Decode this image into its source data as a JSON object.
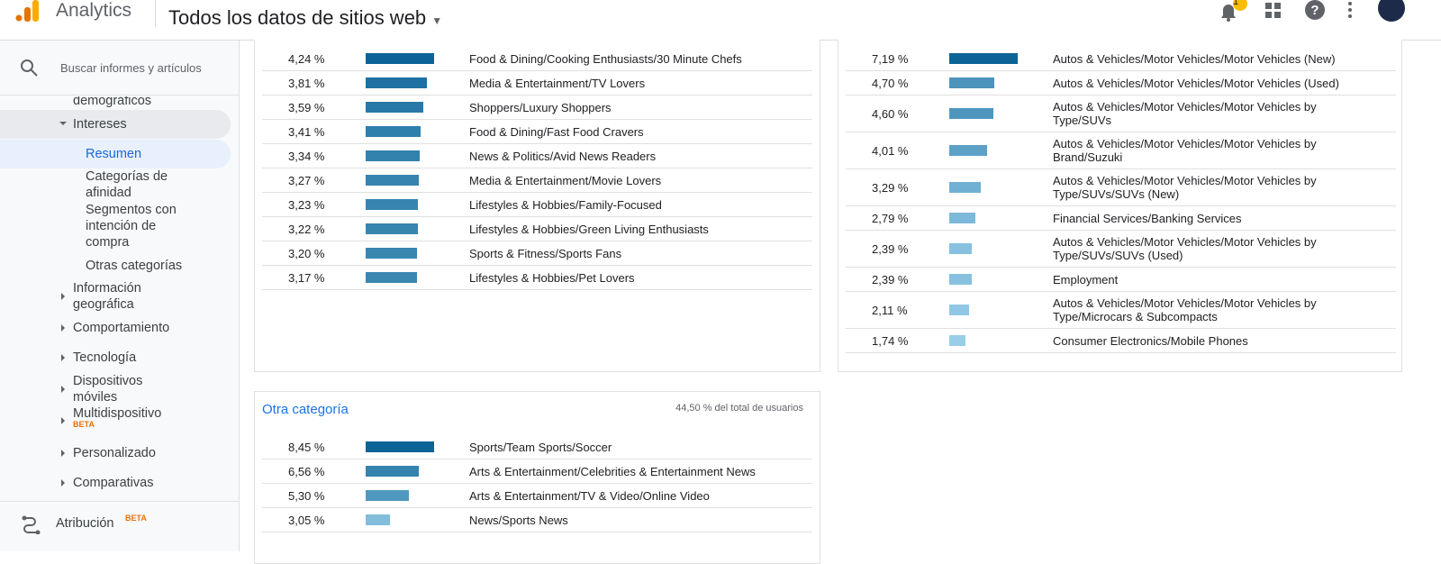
{
  "header": {
    "product": "Analytics",
    "property": "Todos los datos de sitios web",
    "badge": "1"
  },
  "sidebar": {
    "search": "Buscar informes y artículos",
    "items": [
      "demográficos",
      "Intereses",
      "Resumen",
      "Categorías de afinidad",
      "Segmentos con intención de compra",
      "Otras categorías",
      "Información geográfica",
      "Comportamiento",
      "Tecnología",
      "Dispositivos móviles",
      "Multidispositivo",
      "Personalizado",
      "Comparativas"
    ],
    "beta": "BETA",
    "attribution": "Atribución"
  },
  "tables": [
    {
      "rows": [
        {
          "value": 4.24,
          "label": "4,24 %",
          "name": "Food & Dining/Cooking Enthusiasts/30 Minute Chefs"
        },
        {
          "value": 3.81,
          "label": "3,81 %",
          "name": "Media & Entertainment/TV Lovers"
        },
        {
          "value": 3.59,
          "label": "3,59 %",
          "name": "Shoppers/Luxury Shoppers"
        },
        {
          "value": 3.41,
          "label": "3,41 %",
          "name": "Food & Dining/Fast Food Cravers"
        },
        {
          "value": 3.34,
          "label": "3,34 %",
          "name": "News & Politics/Avid News Readers"
        },
        {
          "value": 3.27,
          "label": "3,27 %",
          "name": "Media & Entertainment/Movie Lovers"
        },
        {
          "value": 3.23,
          "label": "3,23 %",
          "name": "Lifestyles & Hobbies/Family-Focused"
        },
        {
          "value": 3.22,
          "label": "3,22 %",
          "name": "Lifestyles & Hobbies/Green Living Enthusiasts"
        },
        {
          "value": 3.2,
          "label": "3,20 %",
          "name": "Sports & Fitness/Sports Fans"
        },
        {
          "value": 3.17,
          "label": "3,17 %",
          "name": "Lifestyles & Hobbies/Pet Lovers"
        }
      ]
    },
    {
      "rows": [
        {
          "value": 7.19,
          "label": "7,19 %",
          "name": "Autos & Vehicles/Motor Vehicles/Motor Vehicles (New)"
        },
        {
          "value": 4.7,
          "label": "4,70 %",
          "name": "Autos & Vehicles/Motor Vehicles/Motor Vehicles (Used)"
        },
        {
          "value": 4.6,
          "label": "4,60 %",
          "name": "Autos & Vehicles/Motor Vehicles/Motor Vehicles by Type/SUVs"
        },
        {
          "value": 4.01,
          "label": "4,01 %",
          "name": "Autos & Vehicles/Motor Vehicles/Motor Vehicles by Brand/Suzuki"
        },
        {
          "value": 3.29,
          "label": "3,29 %",
          "name": "Autos & Vehicles/Motor Vehicles/Motor Vehicles by Type/SUVs/SUVs (New)"
        },
        {
          "value": 2.79,
          "label": "2,79 %",
          "name": "Financial Services/Banking Services"
        },
        {
          "value": 2.39,
          "label": "2,39 %",
          "name": "Autos & Vehicles/Motor Vehicles/Motor Vehicles by Type/SUVs/SUVs (Used)"
        },
        {
          "value": 2.39,
          "label": "2,39 %",
          "name": "Employment"
        },
        {
          "value": 2.11,
          "label": "2,11 %",
          "name": "Autos & Vehicles/Motor Vehicles/Motor Vehicles by Type/Microcars & Subcompacts"
        },
        {
          "value": 1.74,
          "label": "1,74 %",
          "name": "Consumer Electronics/Mobile Phones"
        }
      ]
    },
    {
      "title": "Otra categoría",
      "total": "44,50 % del total de usuarios",
      "rows": [
        {
          "value": 8.45,
          "label": "8,45 %",
          "name": "Sports/Team Sports/Soccer"
        },
        {
          "value": 6.56,
          "label": "6,56 %",
          "name": "Arts & Entertainment/Celebrities & Entertainment News"
        },
        {
          "value": 5.3,
          "label": "5,30 %",
          "name": "Arts & Entertainment/TV & Video/Online Video"
        },
        {
          "value": 3.05,
          "label": "3,05 %",
          "name": "News/Sports News"
        }
      ]
    }
  ]
}
